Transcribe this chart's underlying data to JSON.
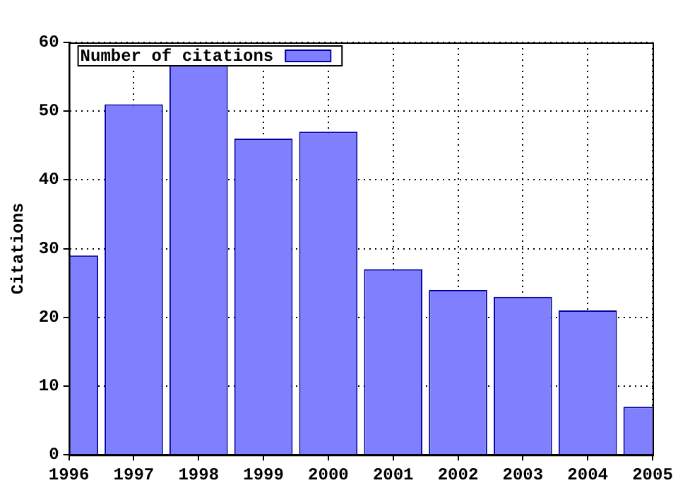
{
  "chart_data": {
    "type": "bar",
    "ylabel": "Citations",
    "x": [
      1996,
      1997,
      1998,
      1999,
      2000,
      2001,
      2002,
      2003,
      2004,
      2005
    ],
    "series": [
      {
        "name": "Number of citations",
        "color": "#8080ff",
        "values": [
          29,
          51,
          57,
          46,
          47,
          27,
          24,
          23,
          21,
          7
        ]
      }
    ],
    "xlim": [
      1996,
      2005
    ],
    "xticks": [
      1996,
      1997,
      1998,
      1999,
      2000,
      2001,
      2002,
      2003,
      2004,
      2005
    ],
    "ylim": [
      0,
      60
    ],
    "yticks": [
      0,
      10,
      20,
      30,
      40,
      50,
      60
    ],
    "grid": true,
    "legend": "top left"
  }
}
